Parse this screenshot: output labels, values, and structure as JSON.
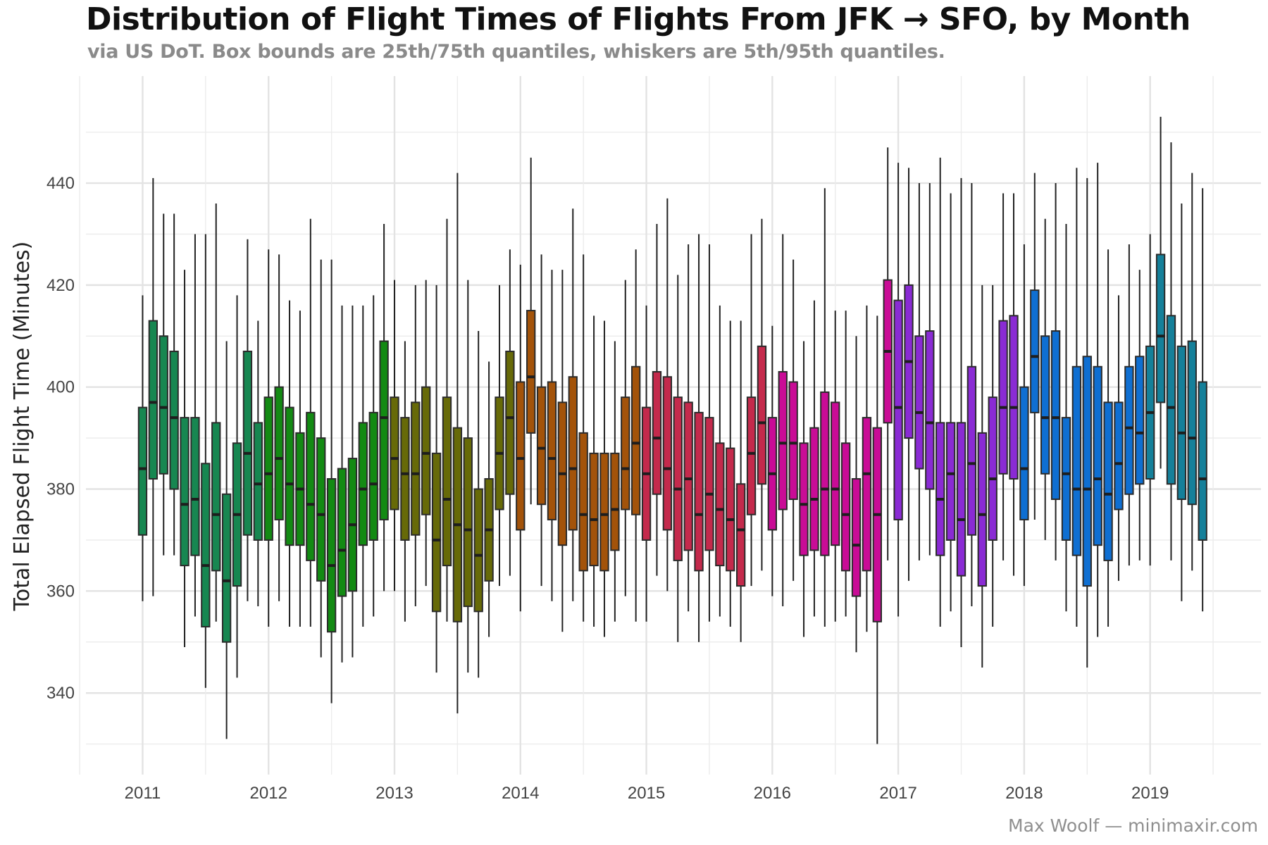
{
  "title": "Distribution of Flight Times of Flights From JFK → SFO, by Month",
  "subtitle": "via US DoT. Box bounds are 25th/75th quantiles, whiskers are 5th/95th quantiles.",
  "caption": "Max Woolf — minimaxir.com",
  "chart_data": {
    "type": "box",
    "title": "Distribution of Flight Times of Flights From JFK → SFO, by Month",
    "xlabel": "",
    "ylabel": "Total Elapsed Flight Time (Minutes)",
    "xlim": [
      2010.55,
      2019.88
    ],
    "ylim": [
      324,
      461
    ],
    "x_ticks": [
      2011,
      2012,
      2013,
      2014,
      2015,
      2016,
      2017,
      2018,
      2019
    ],
    "y_ticks": [
      340,
      360,
      380,
      400,
      420,
      440
    ],
    "grid": true,
    "legend": "none",
    "year_colors": {
      "2011": "#178751",
      "2012": "#138a13",
      "2013": "#676a08",
      "2014": "#a3530a",
      "2015": "#c42a4c",
      "2016": "#c90c96",
      "2017": "#8a2bd4",
      "2018": "#0f6fd2",
      "2019": "#15809a"
    },
    "series": [
      {
        "year": 2011,
        "months": [
          [
            358,
            371,
            384,
            396,
            418
          ],
          [
            359,
            382,
            397,
            413,
            441
          ],
          [
            367,
            383,
            396,
            410,
            434
          ],
          [
            367,
            380,
            394,
            407,
            434
          ],
          [
            349,
            365,
            377,
            394,
            423
          ],
          [
            355,
            367,
            378,
            394,
            430
          ],
          [
            341,
            353,
            365,
            385,
            430
          ],
          [
            354,
            364,
            375,
            393,
            436
          ],
          [
            331,
            350,
            362,
            379,
            409
          ],
          [
            343,
            361,
            375,
            389,
            418
          ],
          [
            358,
            371,
            387,
            407,
            429
          ],
          [
            357,
            370,
            381,
            393,
            413
          ]
        ]
      },
      {
        "year": 2012,
        "months": [
          [
            353,
            370,
            383,
            398,
            427
          ],
          [
            358,
            374,
            386,
            400,
            426
          ],
          [
            353,
            369,
            381,
            396,
            417
          ],
          [
            353,
            369,
            380,
            391,
            415
          ],
          [
            353,
            366,
            377,
            395,
            433
          ],
          [
            347,
            362,
            375,
            390,
            425
          ],
          [
            338,
            352,
            365,
            382,
            425
          ],
          [
            346,
            359,
            368,
            384,
            416
          ],
          [
            347,
            360,
            373,
            386,
            416
          ],
          [
            353,
            369,
            380,
            393,
            416
          ],
          [
            355,
            370,
            381,
            395,
            418
          ],
          [
            360,
            374,
            394,
            409,
            432
          ]
        ]
      },
      {
        "year": 2013,
        "months": [
          [
            360,
            376,
            386,
            398,
            421
          ],
          [
            354,
            370,
            383,
            394,
            409
          ],
          [
            357,
            371,
            383,
            397,
            420
          ],
          [
            361,
            375,
            387,
            400,
            421
          ],
          [
            344,
            356,
            370,
            387,
            420
          ],
          [
            354,
            365,
            378,
            398,
            433
          ],
          [
            336,
            354,
            373,
            392,
            442
          ],
          [
            344,
            357,
            372,
            390,
            421
          ],
          [
            343,
            356,
            367,
            380,
            411
          ],
          [
            351,
            362,
            372,
            382,
            405
          ],
          [
            361,
            376,
            387,
            398,
            420
          ],
          [
            363,
            379,
            394,
            407,
            427
          ]
        ]
      },
      {
        "year": 2014,
        "months": [
          [
            356,
            372,
            386,
            401,
            424
          ],
          [
            377,
            391,
            402,
            415,
            445
          ],
          [
            361,
            377,
            388,
            400,
            426
          ],
          [
            358,
            374,
            386,
            401,
            423
          ],
          [
            352,
            369,
            383,
            397,
            423
          ],
          [
            358,
            372,
            384,
            402,
            435
          ],
          [
            354,
            364,
            375,
            391,
            426
          ],
          [
            353,
            365,
            374,
            387,
            414
          ],
          [
            351,
            364,
            375,
            387,
            413
          ],
          [
            354,
            368,
            376,
            387,
            409
          ],
          [
            359,
            376,
            384,
            398,
            421
          ],
          [
            354,
            375,
            389,
            404,
            427
          ]
        ]
      },
      {
        "year": 2015,
        "months": [
          [
            354,
            370,
            383,
            396,
            416
          ],
          [
            363,
            379,
            390,
            403,
            432
          ],
          [
            360,
            372,
            384,
            402,
            437
          ],
          [
            350,
            366,
            380,
            398,
            422
          ],
          [
            356,
            368,
            382,
            397,
            428
          ],
          [
            350,
            364,
            375,
            395,
            430
          ],
          [
            354,
            368,
            379,
            394,
            428
          ],
          [
            355,
            365,
            376,
            389,
            416
          ],
          [
            353,
            364,
            374,
            388,
            413
          ],
          [
            350,
            361,
            372,
            381,
            413
          ],
          [
            361,
            375,
            387,
            398,
            430
          ],
          [
            364,
            381,
            393,
            408,
            433
          ]
        ]
      },
      {
        "year": 2016,
        "months": [
          [
            359,
            372,
            383,
            394,
            412
          ],
          [
            357,
            376,
            389,
            403,
            430
          ],
          [
            362,
            378,
            389,
            401,
            425
          ],
          [
            351,
            367,
            377,
            389,
            409
          ],
          [
            355,
            368,
            378,
            392,
            417
          ],
          [
            353,
            367,
            380,
            399,
            439
          ],
          [
            354,
            369,
            380,
            397,
            415
          ],
          [
            355,
            364,
            375,
            389,
            415
          ],
          [
            348,
            359,
            369,
            382,
            410
          ],
          [
            352,
            364,
            383,
            394,
            416
          ],
          [
            330,
            354,
            375,
            392,
            414
          ],
          [
            366,
            393,
            407,
            421,
            447
          ]
        ]
      },
      {
        "year": 2017,
        "months": [
          [
            355,
            374,
            396,
            417,
            444
          ],
          [
            362,
            390,
            405,
            420,
            443
          ],
          [
            366,
            384,
            395,
            410,
            440
          ],
          [
            367,
            380,
            393,
            411,
            440
          ],
          [
            353,
            367,
            378,
            393,
            445
          ],
          [
            356,
            370,
            383,
            393,
            438
          ],
          [
            349,
            363,
            374,
            393,
            441
          ],
          [
            357,
            371,
            385,
            404,
            440
          ],
          [
            345,
            361,
            375,
            391,
            420
          ],
          [
            353,
            370,
            382,
            398,
            420
          ],
          [
            366,
            383,
            396,
            413,
            438
          ],
          [
            363,
            382,
            396,
            414,
            438
          ]
        ]
      },
      {
        "year": 2018,
        "months": [
          [
            361,
            374,
            384,
            400,
            428
          ],
          [
            374,
            395,
            406,
            419,
            442
          ],
          [
            370,
            383,
            394,
            410,
            433
          ],
          [
            366,
            378,
            394,
            411,
            440
          ],
          [
            356,
            370,
            383,
            394,
            432
          ],
          [
            353,
            367,
            380,
            404,
            443
          ],
          [
            345,
            361,
            380,
            406,
            441
          ],
          [
            351,
            369,
            382,
            404,
            444
          ],
          [
            353,
            366,
            379,
            397,
            427
          ],
          [
            362,
            376,
            385,
            397,
            418
          ],
          [
            365,
            379,
            392,
            404,
            428
          ],
          [
            366,
            381,
            391,
            406,
            423
          ]
        ]
      },
      {
        "year": 2019,
        "months": [
          [
            365,
            382,
            395,
            408,
            430
          ],
          [
            384,
            397,
            410,
            426,
            453
          ],
          [
            366,
            381,
            396,
            414,
            448
          ],
          [
            358,
            378,
            391,
            408,
            436
          ],
          [
            364,
            377,
            390,
            409,
            442
          ],
          [
            356,
            370,
            382,
            401,
            439
          ]
        ]
      }
    ]
  }
}
